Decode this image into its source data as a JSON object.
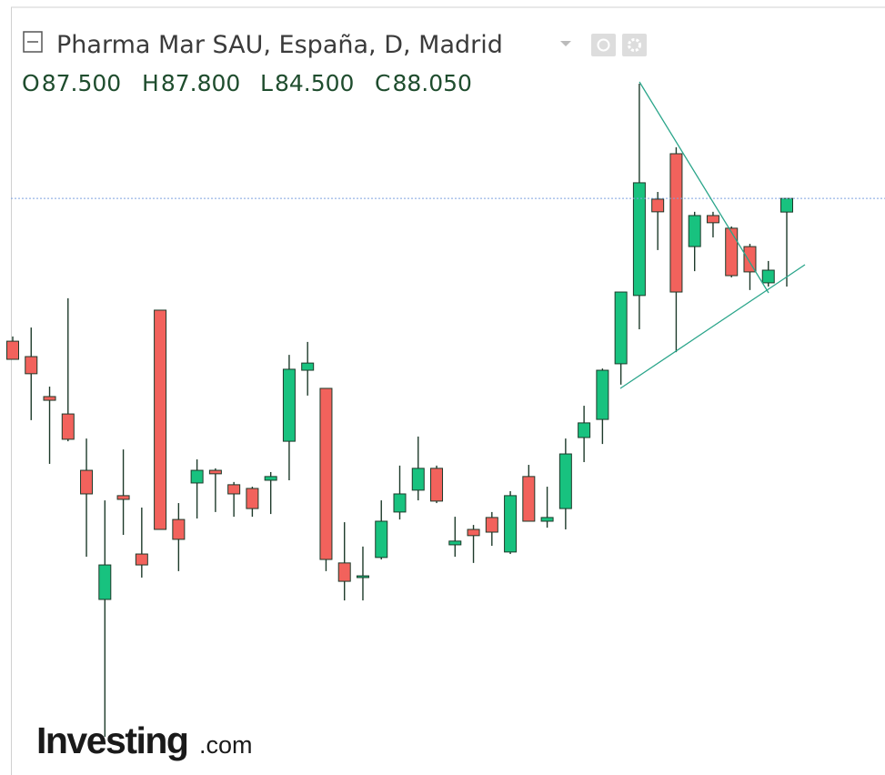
{
  "header": {
    "title": "Pharma Mar SAU, España, D, Madrid",
    "ohlc": [
      {
        "label": "O",
        "value": "87.500"
      },
      {
        "label": "H",
        "value": "87.800"
      },
      {
        "label": "L",
        "value": "84.500"
      },
      {
        "label": "C",
        "value": "88.050"
      }
    ]
  },
  "chart_data": {
    "type": "candlestick",
    "up_color": "#18c27f",
    "down_color": "#f2625c",
    "ylim": [
      64.83,
      96.04
    ],
    "open": [
      82.3,
      81.68,
      80.07,
      79.37,
      77.1,
      71.9,
      76.08,
      73.73,
      83.55,
      75.12,
      76.59,
      77.1,
      76.52,
      76.37,
      76.7,
      78.27,
      81.13,
      80.4,
      73.37,
      72.78,
      73.59,
      75.42,
      76.3,
      77.18,
      74.1,
      74.72,
      75.2,
      73.81,
      76.85,
      75.05,
      75.56,
      78.42,
      79.15,
      81.39,
      84.14,
      88.02,
      89.85,
      86.11,
      87.36,
      86.85,
      86.11,
      84.65,
      87.5
    ],
    "high": [
      82.49,
      82.85,
      80.47,
      84.03,
      78.38,
      75.89,
      77.94,
      75.6,
      83.55,
      75.78,
      77.54,
      77.18,
      76.63,
      76.44,
      77.03,
      81.75,
      82.27,
      80.4,
      75.01,
      74.03,
      75.89,
      77.29,
      78.46,
      77.29,
      75.23,
      74.9,
      75.42,
      76.26,
      77.32,
      76.44,
      78.38,
      79.7,
      81.2,
      84.28,
      92.67,
      88.31,
      90.11,
      87.51,
      87.51,
      86.92,
      86.22,
      85.53,
      87.8
    ],
    "low": [
      81.57,
      79.12,
      77.36,
      78.27,
      73.62,
      66.37,
      74.5,
      72.78,
      74.72,
      73.04,
      75.16,
      75.42,
      75.23,
      75.23,
      75.34,
      76.7,
      80.11,
      73.04,
      71.86,
      71.86,
      73.51,
      75.12,
      75.89,
      75.78,
      73.62,
      73.37,
      74.06,
      73.73,
      75.05,
      74.79,
      74.72,
      77.43,
      78.16,
      80.55,
      82.78,
      85.97,
      81.86,
      85.12,
      86.48,
      84.87,
      84.36,
      84.5,
      84.5
    ],
    "close": [
      81.57,
      80.99,
      79.92,
      78.35,
      76.15,
      73.29,
      75.93,
      73.29,
      74.72,
      74.32,
      77.1,
      76.96,
      76.15,
      75.56,
      76.85,
      81.17,
      81.42,
      73.51,
      72.63,
      72.85,
      75.05,
      76.15,
      77.18,
      75.86,
      74.25,
      74.47,
      74.61,
      76.08,
      75.05,
      75.2,
      77.76,
      79.01,
      81.13,
      84.28,
      88.68,
      87.51,
      84.28,
      87.36,
      87.07,
      84.94,
      85.09,
      85.16,
      88.05
    ]
  },
  "logo": {
    "brand": "Investing",
    "suffix": ".com"
  }
}
